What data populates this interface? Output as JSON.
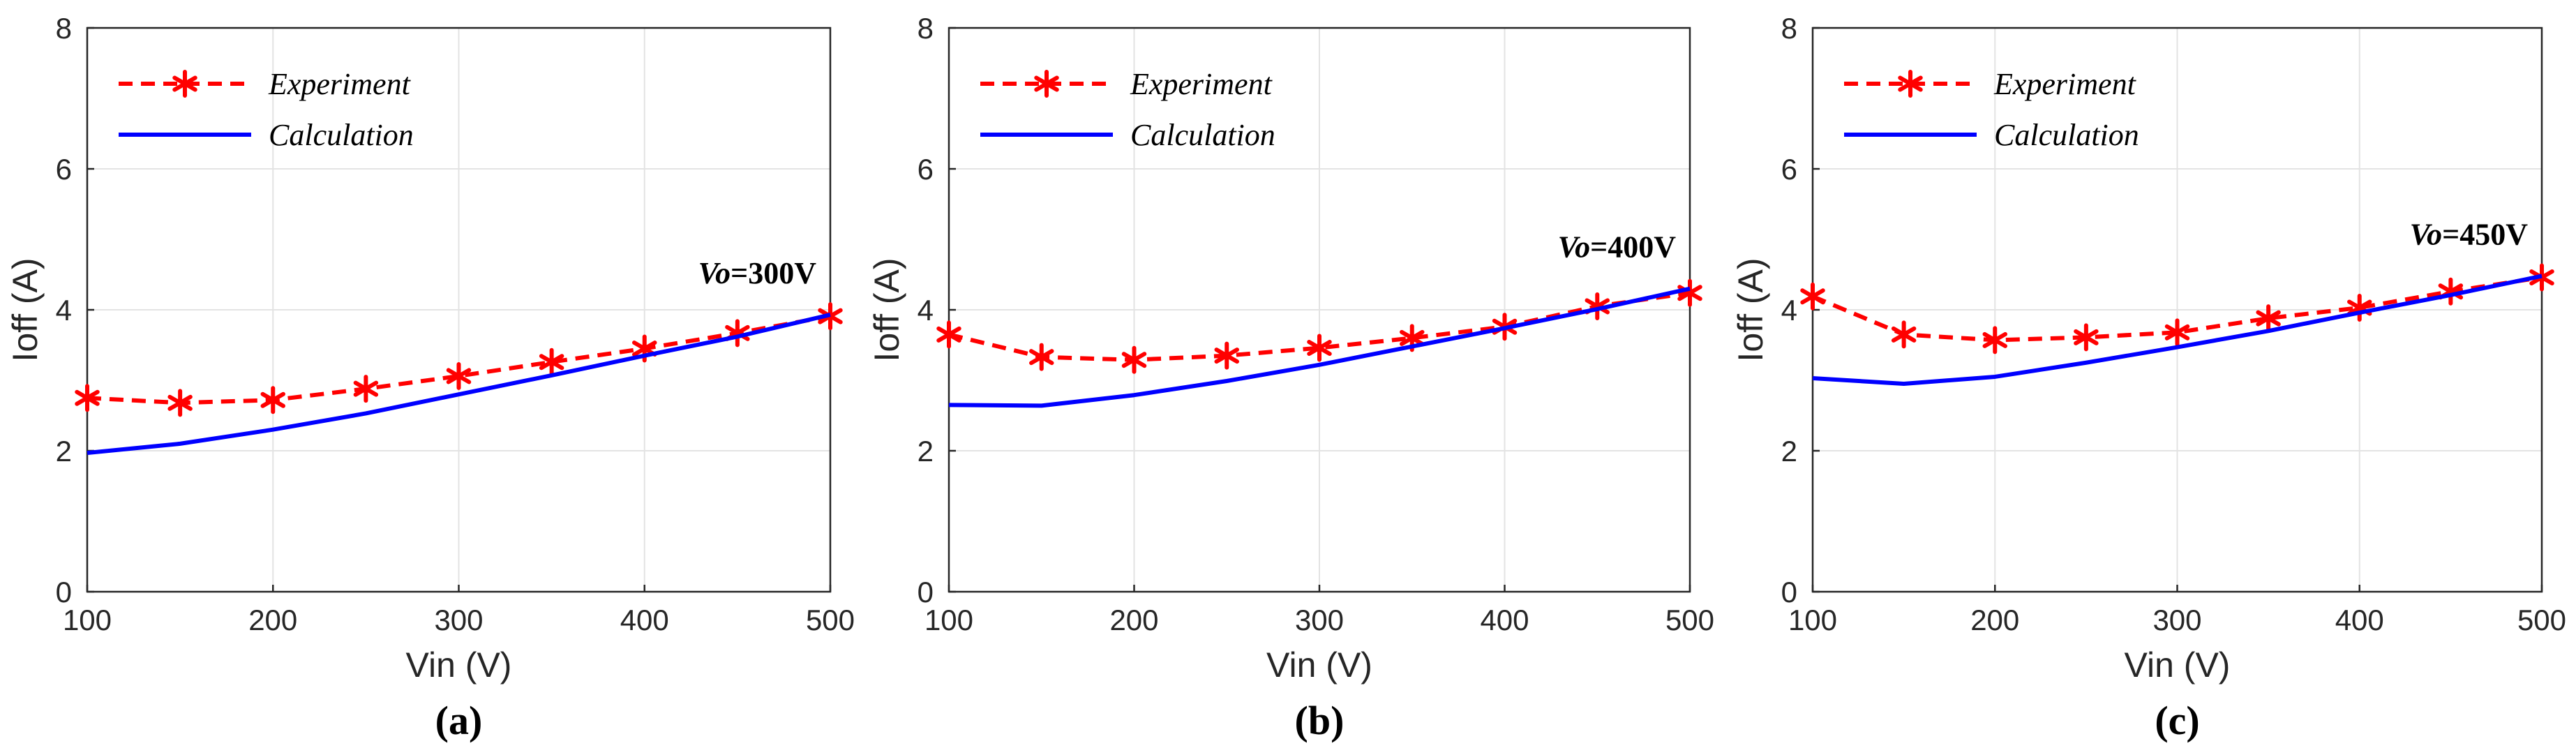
{
  "chart_data": [
    {
      "type": "line",
      "panel_label": "(a)",
      "xlabel": "Vin (V)",
      "ylabel": "Ioff (A)",
      "xlim": [
        100,
        500
      ],
      "ylim": [
        0,
        8
      ],
      "xticks": [
        100,
        200,
        300,
        400,
        500
      ],
      "yticks": [
        0,
        2,
        4,
        6,
        8
      ],
      "grid": true,
      "legend_position": "top-left",
      "annotation": {
        "italic": "Vo",
        "text": "=300V"
      },
      "x": [
        100,
        150,
        200,
        250,
        300,
        350,
        400,
        450,
        500
      ],
      "series": [
        {
          "name": "Experiment",
          "style": "dashed-star",
          "color": "#ff0000",
          "values": [
            2.75,
            2.68,
            2.72,
            2.88,
            3.06,
            3.26,
            3.45,
            3.67,
            3.91
          ]
        },
        {
          "name": "Calculation",
          "style": "solid",
          "color": "#0000ff",
          "values": [
            1.97,
            2.1,
            2.3,
            2.53,
            2.8,
            3.07,
            3.35,
            3.62,
            3.93
          ]
        }
      ]
    },
    {
      "type": "line",
      "panel_label": "(b)",
      "xlabel": "Vin (V)",
      "ylabel": "Ioff (A)",
      "xlim": [
        100,
        500
      ],
      "ylim": [
        0,
        8
      ],
      "xticks": [
        100,
        200,
        300,
        400,
        500
      ],
      "yticks": [
        0,
        2,
        4,
        6,
        8
      ],
      "grid": true,
      "legend_position": "top-left",
      "annotation": {
        "italic": "Vo",
        "text": "=400V"
      },
      "x": [
        100,
        150,
        200,
        250,
        300,
        350,
        400,
        450,
        500
      ],
      "series": [
        {
          "name": "Experiment",
          "style": "dashed-star",
          "color": "#ff0000",
          "values": [
            3.65,
            3.33,
            3.29,
            3.35,
            3.46,
            3.6,
            3.76,
            4.05,
            4.24
          ]
        },
        {
          "name": "Calculation",
          "style": "solid",
          "color": "#0000ff",
          "values": [
            2.65,
            2.64,
            2.79,
            2.99,
            3.22,
            3.48,
            3.74,
            4.01,
            4.3
          ]
        }
      ]
    },
    {
      "type": "line",
      "panel_label": "(c)",
      "xlabel": "Vin (V)",
      "ylabel": "Ioff (A)",
      "xlim": [
        100,
        500
      ],
      "ylim": [
        0,
        8
      ],
      "xticks": [
        100,
        200,
        300,
        400,
        500
      ],
      "yticks": [
        0,
        2,
        4,
        6,
        8
      ],
      "grid": true,
      "legend_position": "top-left",
      "annotation": {
        "italic": "Vo",
        "text": "=450V"
      },
      "x": [
        100,
        150,
        200,
        250,
        300,
        350,
        400,
        450,
        500
      ],
      "series": [
        {
          "name": "Experiment",
          "style": "dashed-star",
          "color": "#ff0000",
          "values": [
            4.19,
            3.65,
            3.57,
            3.61,
            3.68,
            3.88,
            4.03,
            4.26,
            4.46
          ]
        },
        {
          "name": "Calculation",
          "style": "solid",
          "color": "#0000ff",
          "values": [
            3.03,
            2.95,
            3.05,
            3.25,
            3.47,
            3.7,
            3.96,
            4.21,
            4.48
          ]
        }
      ]
    }
  ]
}
